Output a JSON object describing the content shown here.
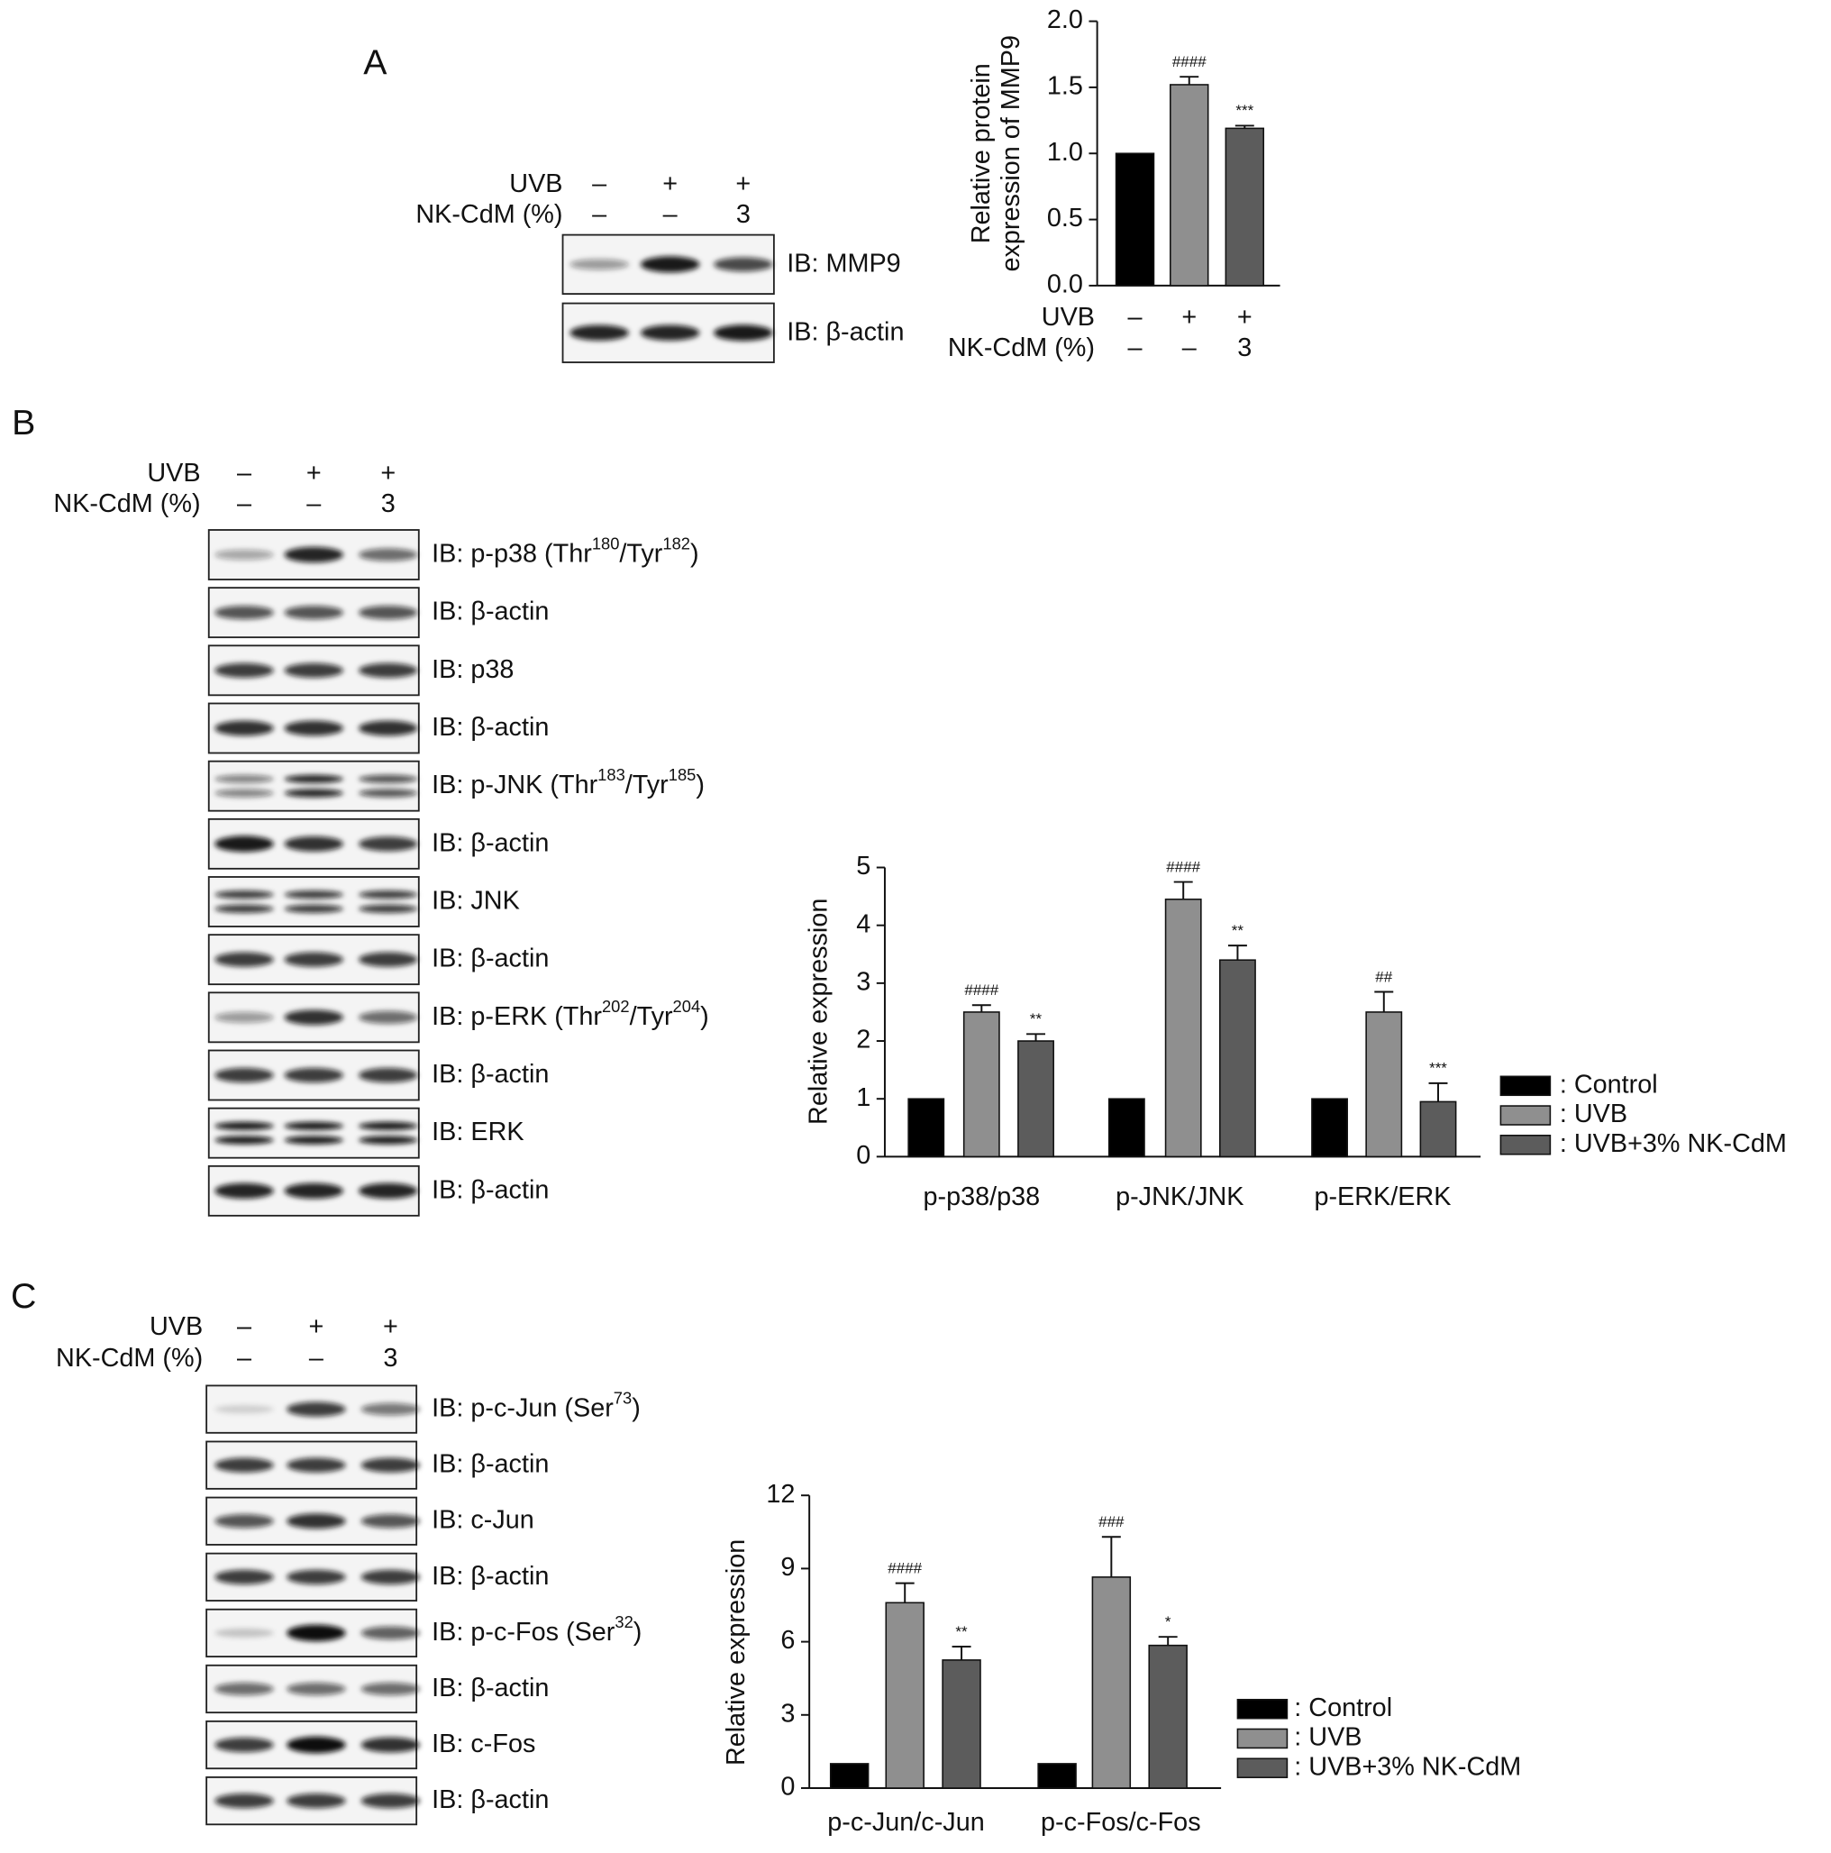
{
  "chart_data": [
    {
      "type": "bar",
      "y_label": [
        "Relative protein",
        "expression of MMP9"
      ],
      "treatments": [
        {
          "label": "UVB",
          "signs": [
            "–",
            "+",
            "+"
          ]
        },
        {
          "label": "NK-CdM (%)",
          "signs": [
            "–",
            "–",
            "3"
          ]
        }
      ],
      "values": [
        1.0,
        1.52,
        1.19
      ],
      "errors": [
        null,
        0.06,
        0.02
      ],
      "annotations": [
        null,
        "####",
        "***"
      ],
      "colors": [
        "#000000",
        "#8f8f8f",
        "#5c5c5c"
      ],
      "ylim": [
        0,
        2
      ],
      "yticks": [
        {
          "value": 0,
          "label": "0.0"
        },
        {
          "value": 0.5,
          "label": "0.5"
        },
        {
          "value": 1,
          "label": "1.0"
        },
        {
          "value": 1.5,
          "label": "1.5"
        },
        {
          "value": 2,
          "label": "2.0"
        }
      ]
    },
    {
      "type": "grouped_bar",
      "y_label": "Relative expression",
      "categories": [
        "p-p38/p38",
        "p-JNK/JNK",
        "p-ERK/ERK"
      ],
      "series": [
        {
          "name": ": Control",
          "color": "#000000",
          "values": [
            1,
            1,
            1
          ],
          "errors": [
            null,
            null,
            null
          ],
          "annotations": [
            null,
            null,
            null
          ]
        },
        {
          "name": ": UVB",
          "color": "#8f8f8f",
          "values": [
            2.5,
            4.45,
            2.5
          ],
          "errors": [
            0.12,
            0.3,
            0.35
          ],
          "annotations": [
            "####",
            "####",
            "##"
          ]
        },
        {
          "name": ": UVB+3% NK-CdM",
          "color": "#5c5c5c",
          "values": [
            2.0,
            3.4,
            0.95
          ],
          "errors": [
            0.12,
            0.25,
            0.32
          ],
          "annotations": [
            "**",
            "**",
            "***"
          ]
        }
      ],
      "ylim": [
        0,
        5
      ],
      "yticks": [
        0,
        1,
        2,
        3,
        4,
        5
      ]
    },
    {
      "type": "grouped_bar",
      "y_label": "Relative expression",
      "categories": [
        "p-c-Jun/c-Jun",
        "p-c-Fos/c-Fos"
      ],
      "series": [
        {
          "name": ": Control",
          "color": "#000000",
          "values": [
            1,
            1
          ],
          "errors": [
            null,
            null
          ],
          "annotations": [
            null,
            null
          ]
        },
        {
          "name": ": UVB",
          "color": "#8f8f8f",
          "values": [
            7.6,
            8.65
          ],
          "errors": [
            0.8,
            1.65
          ],
          "annotations": [
            "####",
            "###"
          ]
        },
        {
          "name": ": UVB+3% NK-CdM",
          "color": "#5c5c5c",
          "values": [
            5.25,
            5.85
          ],
          "errors": [
            0.55,
            0.35
          ],
          "annotations": [
            "**",
            "*"
          ]
        }
      ],
      "ylim": [
        0,
        12
      ],
      "yticks": [
        0,
        3,
        6,
        9,
        12
      ]
    }
  ],
  "panels": [
    {
      "letter": "A",
      "treatments": [
        {
          "label": "UVB",
          "signs": [
            "–",
            "+",
            "+"
          ]
        },
        {
          "label": "NK-CdM (%)",
          "signs": [
            "–",
            "–",
            "3"
          ]
        }
      ],
      "blots": [
        [
          {
            "text": "IB: MMP9"
          }
        ],
        [
          {
            "text": "IB: β-actin"
          }
        ]
      ]
    },
    {
      "letter": "B",
      "treatments": [
        {
          "label": "UVB",
          "signs": [
            "–",
            "+",
            "+"
          ]
        },
        {
          "label": "NK-CdM (%)",
          "signs": [
            "–",
            "–",
            "3"
          ]
        }
      ],
      "blots": [
        [
          {
            "text": "IB: p-p38 (Thr"
          },
          {
            "sup": "180"
          },
          {
            "text": "/Tyr"
          },
          {
            "sup": "182"
          },
          {
            "text": ")"
          }
        ],
        [
          {
            "text": "IB: β-actin"
          }
        ],
        [
          {
            "text": "IB: p38"
          }
        ],
        [
          {
            "text": "IB: β-actin"
          }
        ],
        [
          {
            "text": "IB: p-JNK (Thr"
          },
          {
            "sup": "183"
          },
          {
            "text": "/Tyr"
          },
          {
            "sup": "185"
          },
          {
            "text": ")"
          }
        ],
        [
          {
            "text": "IB: β-actin"
          }
        ],
        [
          {
            "text": "IB: JNK"
          }
        ],
        [
          {
            "text": "IB: β-actin"
          }
        ],
        [
          {
            "text": "IB: p-ERK (Thr"
          },
          {
            "sup": "202"
          },
          {
            "text": "/Tyr"
          },
          {
            "sup": "204"
          },
          {
            "text": ")"
          }
        ],
        [
          {
            "text": "IB: β-actin"
          }
        ],
        [
          {
            "text": "IB: ERK"
          }
        ],
        [
          {
            "text": "IB: β-actin"
          }
        ]
      ]
    },
    {
      "letter": "C",
      "treatments": [
        {
          "label": "UVB",
          "signs": [
            "–",
            "+",
            "+"
          ]
        },
        {
          "label": "NK-CdM (%)",
          "signs": [
            "–",
            "–",
            "3"
          ]
        }
      ],
      "blots": [
        [
          {
            "text": "IB: p-c-Jun (Ser"
          },
          {
            "sup": "73"
          },
          {
            "text": ")"
          }
        ],
        [
          {
            "text": "IB: β-actin"
          }
        ],
        [
          {
            "text": "IB: c-Jun"
          }
        ],
        [
          {
            "text": "IB: β-actin"
          }
        ],
        [
          {
            "text": "IB: p-c-Fos (Ser"
          },
          {
            "sup": "32"
          },
          {
            "text": ")"
          }
        ],
        [
          {
            "text": "IB: β-actin"
          }
        ],
        [
          {
            "text": "IB: c-Fos"
          }
        ],
        [
          {
            "text": "IB: β-actin"
          }
        ]
      ]
    }
  ]
}
